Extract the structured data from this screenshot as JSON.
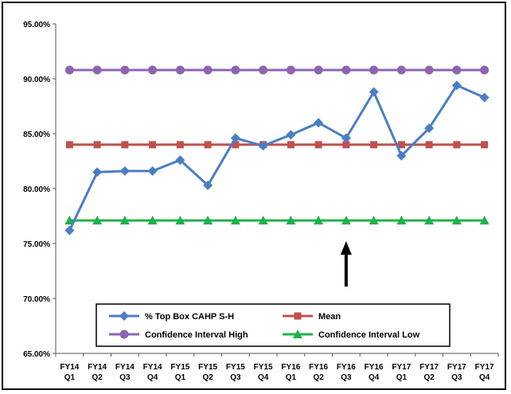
{
  "chart_data": {
    "type": "line",
    "categories": [
      [
        "FY14",
        "Q1"
      ],
      [
        "FY14",
        "Q2"
      ],
      [
        "FY14",
        "Q3"
      ],
      [
        "FY14",
        "Q4"
      ],
      [
        "FY15",
        "Q1"
      ],
      [
        "FY15",
        "Q2"
      ],
      [
        "FY15",
        "Q3"
      ],
      [
        "FY15",
        "Q4"
      ],
      [
        "FY16",
        "Q1"
      ],
      [
        "FY16",
        "Q2"
      ],
      [
        "FY16",
        "Q3"
      ],
      [
        "FY16",
        "Q4"
      ],
      [
        "FY17",
        "Q1"
      ],
      [
        "FY17",
        "Q2"
      ],
      [
        "FY17",
        "Q3"
      ],
      [
        "FY17",
        "Q4"
      ]
    ],
    "ylim": [
      0.65,
      0.95
    ],
    "yticks": [
      "95.00%",
      "90.00%",
      "85.00%",
      "80.00%",
      "75.00%",
      "70.00%",
      "65.00%"
    ],
    "grid": false,
    "legend_position": "bottom-center",
    "annotation": "up-arrow at FY16 Q3",
    "series": [
      {
        "name": "% Top Box CAHP S-H",
        "color": "#4a7ec4",
        "marker": "diamond",
        "values": [
          0.762,
          0.815,
          0.816,
          0.816,
          0.826,
          0.803,
          0.846,
          0.839,
          0.849,
          0.86,
          0.846,
          0.888,
          0.83,
          0.855,
          0.894,
          0.883
        ]
      },
      {
        "name": "Mean",
        "color": "#c0504d",
        "marker": "square",
        "values": [
          0.84,
          0.84,
          0.84,
          0.84,
          0.84,
          0.84,
          0.84,
          0.84,
          0.84,
          0.84,
          0.84,
          0.84,
          0.84,
          0.84,
          0.84,
          0.84
        ]
      },
      {
        "name": "Confidence Interval High",
        "color": "#8c64b0",
        "marker": "circle",
        "values": [
          0.908,
          0.908,
          0.908,
          0.908,
          0.908,
          0.908,
          0.908,
          0.908,
          0.908,
          0.908,
          0.908,
          0.908,
          0.908,
          0.908,
          0.908,
          0.908
        ]
      },
      {
        "name": "Confidence Interval Low",
        "color": "#1fb24a",
        "marker": "triangle",
        "values": [
          0.771,
          0.771,
          0.771,
          0.771,
          0.771,
          0.771,
          0.771,
          0.771,
          0.771,
          0.771,
          0.771,
          0.771,
          0.771,
          0.771,
          0.771,
          0.771
        ]
      }
    ]
  }
}
